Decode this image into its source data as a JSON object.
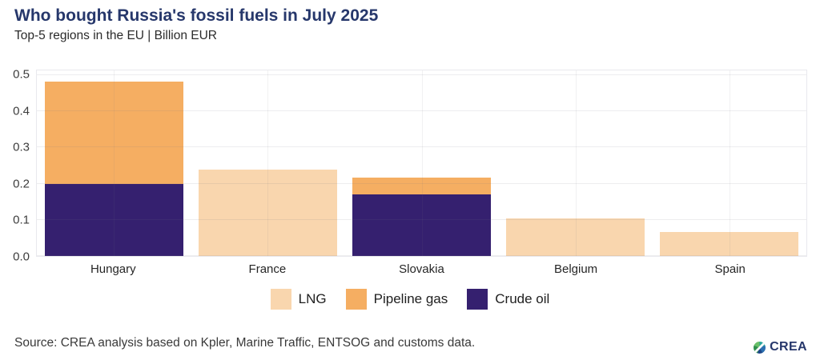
{
  "header": {
    "title": "Who bought Russia's fossil fuels in July 2025",
    "subtitle": "Top-5 regions in the EU | Billion EUR"
  },
  "chart_data": {
    "type": "bar",
    "stacked": true,
    "title": "Who bought Russia's fossil fuels in July 2025",
    "subtitle": "Top-5 regions in the EU | Billion EUR",
    "xlabel": "",
    "ylabel": "",
    "categories": [
      "Hungary",
      "France",
      "Slovakia",
      "Belgium",
      "Spain"
    ],
    "series": [
      {
        "name": "LNG",
        "color": "#f9d6ae",
        "values": [
          0,
          0.239,
          0,
          0.103,
          0.066
        ]
      },
      {
        "name": "Pipeline gas",
        "color": "#f5ae62",
        "values": [
          0.283,
          0,
          0.046,
          0,
          0
        ]
      },
      {
        "name": "Crude oil",
        "color": "#35206f",
        "values": [
          0.2,
          0,
          0.17,
          0,
          0
        ]
      }
    ],
    "totals": [
      0.483,
      0.239,
      0.216,
      0.103,
      0.066
    ],
    "ylim": [
      0,
      0.5
    ],
    "yticks": [
      0,
      0.1,
      0.2,
      0.3,
      0.4,
      0.5
    ],
    "grid": true,
    "legend_position": "bottom"
  },
  "footer": {
    "source": "Source: CREA analysis based on Kpler, Marine Traffic, ENTSOG and customs data.",
    "logo_text": "CREA"
  },
  "colors": {
    "title": "#26376b",
    "lng": "#f9d6ae",
    "pipeline_gas": "#f5ae62",
    "crude_oil": "#35206f"
  }
}
